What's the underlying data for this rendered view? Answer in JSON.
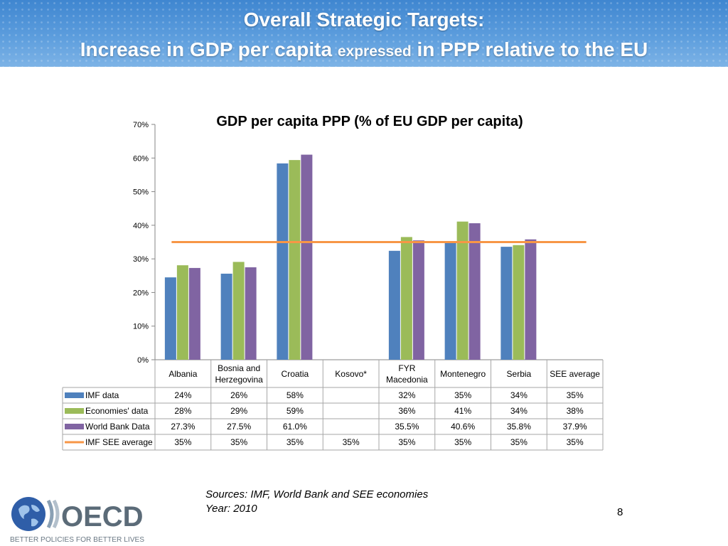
{
  "slide": {
    "title_line1": "Overall Strategic Targets:",
    "title_line2_a": "Increase in GDP per capita ",
    "title_line2_b": "expressed",
    "title_line2_c": " in PPP relative to the EU",
    "sources": "Sources: IMF, World Bank and SEE economies",
    "year": "Year: 2010",
    "page_number": "8",
    "logo_text": "OECD",
    "logo_tagline": "BETTER POLICIES FOR BETTER LIVES"
  },
  "chart_data": {
    "type": "bar",
    "title": "GDP per capita PPP (% of EU GDP per capita)",
    "categories": [
      "Albania",
      "Bosnia and Herzegovina",
      "Croatia",
      "Kosovo*",
      "FYR Macedonia",
      "Montenegro",
      "Serbia",
      "SEE average"
    ],
    "ylim": [
      0,
      70
    ],
    "yticks": [
      0,
      10,
      20,
      30,
      40,
      50,
      60,
      70
    ],
    "ytick_labels": [
      "0%",
      "10%",
      "20%",
      "30%",
      "40%",
      "50%",
      "60%",
      "70%"
    ],
    "series": [
      {
        "name": "IMF data",
        "kind": "bar",
        "color": "#4f81bd",
        "values": [
          24.5,
          25.6,
          58.4,
          null,
          32.4,
          34.7,
          33.6,
          null
        ],
        "labels": [
          "24%",
          "26%",
          "58%",
          "",
          "32%",
          "35%",
          "34%",
          "35%"
        ]
      },
      {
        "name": "Economies' data",
        "kind": "bar",
        "color": "#9bbb59",
        "values": [
          28.1,
          29.1,
          59.4,
          null,
          36.5,
          41.1,
          34.1,
          null
        ],
        "labels": [
          "28%",
          "29%",
          "59%",
          "",
          "36%",
          "41%",
          "34%",
          "38%"
        ]
      },
      {
        "name": "World Bank Data",
        "kind": "bar",
        "color": "#8064a2",
        "values": [
          27.3,
          27.5,
          61.0,
          null,
          35.5,
          40.6,
          35.8,
          null
        ],
        "labels": [
          "27.3%",
          "27.5%",
          "61.0%",
          "",
          "35.5%",
          "40.6%",
          "35.8%",
          "37.9%"
        ]
      },
      {
        "name": "IMF SEE average",
        "kind": "line",
        "color": "#f79646",
        "values": [
          35,
          35,
          35,
          35,
          35,
          35,
          35,
          35
        ],
        "labels": [
          "35%",
          "35%",
          "35%",
          "35%",
          "35%",
          "35%",
          "35%",
          "35%"
        ]
      }
    ],
    "legend": "data-table"
  }
}
